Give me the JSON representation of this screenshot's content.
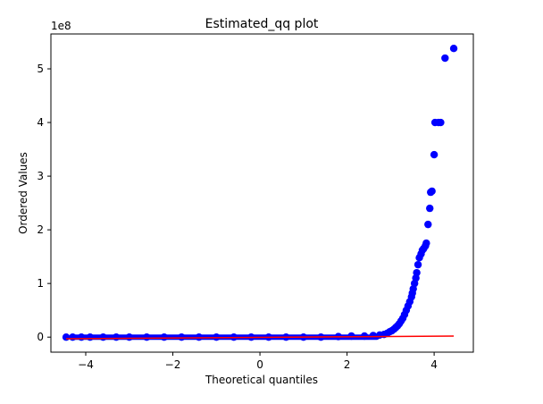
{
  "chart_data": {
    "type": "scatter",
    "title": "Estimated_qq plot",
    "xlabel": "Theoretical quantiles",
    "ylabel": "Ordered Values",
    "y_scale_label": "1e8",
    "xlim": [
      -4.8,
      4.9
    ],
    "ylim": [
      -0.28,
      5.65
    ],
    "x_ticks": [
      -4,
      -2,
      0,
      2,
      4
    ],
    "x_tick_labels": [
      "−4",
      "−2",
      "0",
      "2",
      "4"
    ],
    "y_ticks": [
      0,
      1,
      2,
      3,
      4,
      5
    ],
    "y_tick_labels": [
      "0",
      "1",
      "2",
      "3",
      "4",
      "5"
    ],
    "grid": false,
    "colors": {
      "points": "#0000ff",
      "fit_line": "#ff0000"
    },
    "fit_line": {
      "x": [
        -4.45,
        4.45
      ],
      "y": [
        -0.03,
        0.02
      ]
    },
    "series": [
      {
        "x": [
          -4.45,
          -4.3,
          -4.1,
          -3.9,
          -3.6,
          -3.3,
          -3.0,
          -2.6,
          -2.2,
          -1.8,
          -1.4,
          -1.0,
          -0.6,
          -0.2,
          0.2,
          0.6,
          1.0,
          1.4,
          1.8,
          2.1,
          2.4,
          2.6,
          2.75,
          2.85,
          2.92,
          2.98,
          3.03,
          3.08,
          3.12,
          3.16,
          3.2,
          3.24,
          3.28,
          3.32,
          3.36,
          3.4,
          3.44,
          3.48,
          3.5,
          3.52,
          3.55,
          3.58,
          3.6,
          3.63,
          3.66,
          3.7,
          3.73,
          3.76,
          3.8,
          3.82,
          3.86,
          3.9,
          3.92,
          3.95,
          4.0,
          4.02,
          4.1,
          4.15,
          4.25,
          4.45
        ],
        "y": [
          0.0,
          0.0,
          0.0,
          0.0,
          0.0,
          0.0,
          0.0,
          0.0,
          0.0,
          0.0,
          0.0,
          0.0,
          0.0,
          0.0,
          0.0,
          0.0,
          0.0,
          0.0,
          0.01,
          0.02,
          0.02,
          0.03,
          0.04,
          0.05,
          0.07,
          0.1,
          0.12,
          0.15,
          0.18,
          0.21,
          0.25,
          0.3,
          0.35,
          0.42,
          0.5,
          0.58,
          0.66,
          0.75,
          0.82,
          0.9,
          1.0,
          1.1,
          1.2,
          1.35,
          1.48,
          1.55,
          1.62,
          1.65,
          1.7,
          1.75,
          2.1,
          2.4,
          2.7,
          2.72,
          3.4,
          4.0,
          4.0,
          4.0,
          5.2,
          5.38
        ]
      }
    ]
  }
}
